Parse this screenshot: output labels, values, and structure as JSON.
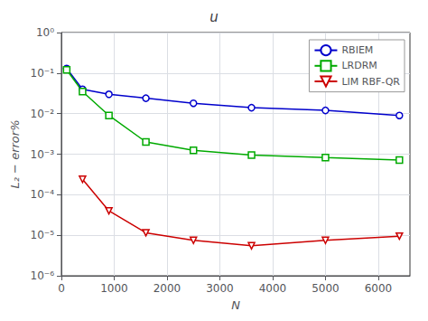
{
  "chart_data": {
    "type": "line",
    "title": "u",
    "xlabel": "N",
    "ylabel": "L₂ − error%",
    "log": "y",
    "grid": true,
    "legend": "upper right",
    "xlim": [
      0,
      6600
    ],
    "xticks": [
      0,
      1000,
      2000,
      3000,
      4000,
      5000,
      6000
    ],
    "ylim": [
      1e-06,
      1
    ],
    "yticks": [
      {
        "value": 1e-06,
        "label": "10⁻⁶"
      },
      {
        "value": 1e-05,
        "label": "10⁻⁵"
      },
      {
        "value": 0.0001,
        "label": "10⁻⁴"
      },
      {
        "value": 0.001,
        "label": "10⁻³"
      },
      {
        "value": 0.01,
        "label": "10⁻²"
      },
      {
        "value": 0.1,
        "label": "10⁻¹"
      },
      {
        "value": 1,
        "label": "10⁰"
      }
    ],
    "series": [
      {
        "name": "RBIEM",
        "color": "#0000cc",
        "marker": "circle",
        "x": [
          100,
          400,
          900,
          1600,
          2500,
          3600,
          5000,
          6400
        ],
        "values": [
          0.13,
          0.04,
          0.03,
          0.024,
          0.018,
          0.014,
          0.012,
          0.009
        ]
      },
      {
        "name": "LRDRM",
        "color": "#00aa00",
        "marker": "square",
        "x": [
          100,
          400,
          900,
          1600,
          2500,
          3600,
          5000,
          6400
        ],
        "values": [
          0.12,
          0.035,
          0.009,
          0.002,
          0.00125,
          0.00095,
          0.00082,
          0.00072
        ]
      },
      {
        "name": "LIM RBF-QR",
        "color": "#cc0000",
        "marker": "triangle_down",
        "x": [
          400,
          900,
          1600,
          2500,
          3600,
          5000,
          6400
        ],
        "values": [
          0.00024,
          4e-05,
          1.15e-05,
          7.5e-06,
          5.5e-06,
          7.5e-06,
          9.5e-06
        ]
      }
    ]
  }
}
